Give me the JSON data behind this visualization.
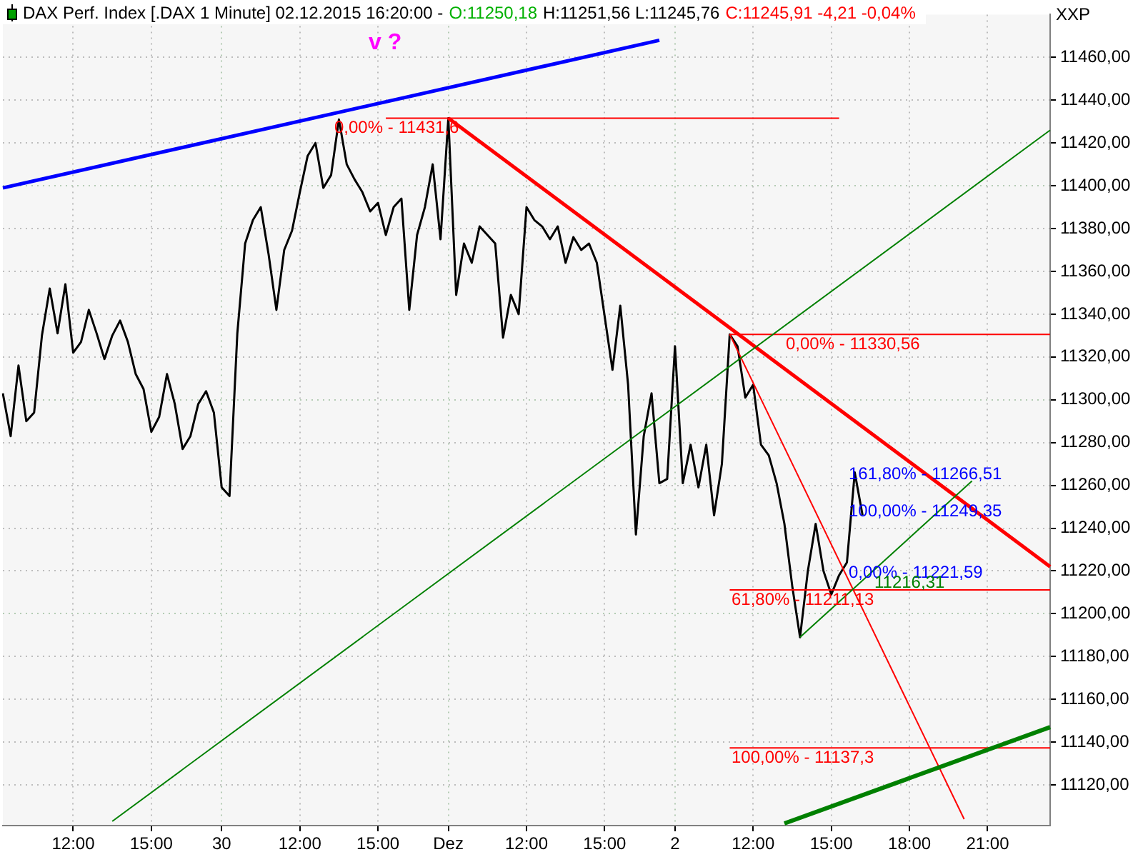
{
  "chart_data": {
    "type": "line",
    "title": "DAX Perf. Index [.DAX  1 Minute] 02.12.2015 16:20:00 -",
    "ylabel": "XXP",
    "annotations": [
      "O:11250,18",
      "H:11251,56 L:11245,76",
      "C:11245,91 -4,21 -0,04%",
      "v ?",
      {
        "text": "0,00% - 11431,6",
        "y": 11431.6
      },
      {
        "text": "0,00% - 11330,56",
        "y": 11330.56
      },
      "161,80% - 11266,51",
      "100,00% - 11249,35",
      "0,00% - 11221,59",
      "11216,31",
      {
        "text": "61,80% - 11211,13",
        "y": 11211.13
      },
      {
        "text": "100,00% - 11137,3",
        "y": 11137.3
      }
    ],
    "categories": [
      null,
      null,
      null,
      null,
      null,
      null,
      null,
      null,
      null,
      "12:00",
      null,
      null,
      null,
      null,
      null,
      null,
      null,
      null,
      null,
      "15:00",
      null,
      null,
      null,
      null,
      null,
      null,
      null,
      null,
      "30",
      null,
      null,
      null,
      null,
      null,
      null,
      null,
      null,
      null,
      "12:00",
      null,
      null,
      null,
      null,
      null,
      null,
      null,
      null,
      null,
      "15:00",
      null,
      null,
      null,
      null,
      null,
      null,
      null,
      null,
      "Dez",
      null,
      null,
      null,
      null,
      null,
      null,
      null,
      null,
      null,
      "12:00",
      null,
      null,
      null,
      null,
      null,
      null,
      null,
      null,
      null,
      "15:00",
      null,
      null,
      null,
      null,
      null,
      null,
      null,
      null,
      "2",
      null,
      null,
      null,
      null,
      null,
      null,
      null,
      null,
      null,
      "12:00",
      null,
      null,
      null,
      null,
      null,
      null,
      null,
      null,
      null,
      "15:00",
      null,
      null,
      null,
      null,
      null,
      null,
      null,
      null,
      null,
      "18:00",
      null,
      null,
      null,
      null,
      null,
      null,
      null,
      null,
      null,
      "21:00",
      null,
      null,
      null,
      null,
      null,
      null,
      null,
      null
    ],
    "ylim": [
      11101,
      11480
    ],
    "yticks": [
      {
        "value": 11120,
        "label": "11120,00"
      },
      {
        "value": 11140,
        "label": "11140,00"
      },
      {
        "value": 11160,
        "label": "11160,00"
      },
      {
        "value": 11180,
        "label": "11180,00"
      },
      {
        "value": 11200,
        "label": "11200,00"
      },
      {
        "value": 11220,
        "label": "11220,00"
      },
      {
        "value": 11240,
        "label": "11240,00"
      },
      {
        "value": 11260,
        "label": "11260,00"
      },
      {
        "value": 11280,
        "label": "11280,00"
      },
      {
        "value": 11300,
        "label": "11300,00"
      },
      {
        "value": 11320,
        "label": "11320,00"
      },
      {
        "value": 11340,
        "label": "11340,00"
      },
      {
        "value": 11360,
        "label": "11360,00"
      },
      {
        "value": 11380,
        "label": "11380,00"
      },
      {
        "value": 11400,
        "label": "11400,00"
      },
      {
        "value": 11420,
        "label": "11420,00"
      },
      {
        "value": 11440,
        "label": "11440,00"
      },
      {
        "value": 11460,
        "label": "11460,00"
      }
    ],
    "grid": true,
    "legend": false,
    "marker": "none",
    "line_style": "solid",
    "series": [
      {
        "type": "line",
        "color": "#0000ff",
        "values": [
          11399,
          null,
          null,
          null,
          null,
          null,
          null,
          null,
          null,
          null,
          null,
          null,
          null,
          null,
          null,
          null,
          null,
          null,
          null,
          null,
          null,
          null,
          null,
          null,
          null,
          null,
          null,
          null,
          null,
          null,
          null,
          null,
          null,
          null,
          null,
          null,
          null,
          null,
          null,
          null,
          null,
          null,
          null,
          null,
          null,
          null,
          null,
          null,
          null,
          null,
          null,
          null,
          null,
          null,
          null,
          null,
          null,
          null,
          null,
          null,
          null,
          null,
          null,
          null,
          null,
          null,
          null,
          null,
          null,
          null,
          null,
          null,
          null,
          null,
          null,
          null,
          null,
          null,
          null,
          null,
          null,
          null,
          null,
          null,
          11468,
          null,
          null,
          null,
          null,
          null,
          null,
          null,
          null,
          null,
          null,
          null,
          null,
          null,
          null,
          null,
          null,
          null,
          null,
          null,
          null,
          null,
          null,
          null,
          null,
          null,
          null,
          null,
          null,
          null,
          null,
          null,
          null,
          null,
          null,
          null,
          null,
          null,
          null,
          null,
          null,
          null,
          null,
          null,
          null,
          null,
          null,
          null,
          null,
          null,
          null
        ]
      },
      {
        "type": "line",
        "color": "#008000",
        "values": [
          null,
          null,
          null,
          null,
          null,
          null,
          null,
          null,
          null,
          null,
          null,
          null,
          null,
          null,
          11103,
          null,
          null,
          null,
          null,
          null,
          null,
          null,
          null,
          null,
          null,
          null,
          null,
          null,
          null,
          null,
          null,
          null,
          null,
          null,
          null,
          null,
          null,
          null,
          null,
          null,
          null,
          null,
          null,
          null,
          null,
          null,
          null,
          null,
          null,
          null,
          null,
          null,
          null,
          null,
          null,
          null,
          null,
          null,
          null,
          null,
          null,
          null,
          null,
          null,
          null,
          null,
          null,
          null,
          null,
          null,
          null,
          null,
          null,
          null,
          null,
          null,
          null,
          null,
          null,
          null,
          null,
          null,
          null,
          null,
          null,
          null,
          null,
          null,
          null,
          null,
          null,
          null,
          null,
          null,
          null,
          null,
          null,
          null,
          null,
          null,
          null,
          null,
          null,
          null,
          null,
          null,
          null,
          null,
          null,
          null,
          null,
          null,
          null,
          null,
          null,
          null,
          null,
          null,
          null,
          null,
          null,
          null,
          null,
          null,
          null,
          null,
          null,
          null,
          null,
          null,
          null,
          null,
          null,
          null,
          11426
        ]
      },
      {
        "type": "line",
        "color": "#008000",
        "values": [
          null,
          null,
          null,
          null,
          null,
          null,
          null,
          null,
          null,
          null,
          null,
          null,
          null,
          null,
          null,
          null,
          null,
          null,
          null,
          null,
          null,
          null,
          null,
          null,
          null,
          null,
          null,
          null,
          null,
          null,
          null,
          null,
          null,
          null,
          null,
          null,
          null,
          null,
          null,
          null,
          null,
          null,
          null,
          null,
          null,
          null,
          null,
          null,
          null,
          null,
          null,
          null,
          null,
          null,
          null,
          null,
          null,
          null,
          null,
          null,
          null,
          null,
          null,
          null,
          null,
          null,
          null,
          null,
          null,
          null,
          null,
          null,
          null,
          null,
          null,
          null,
          null,
          null,
          null,
          null,
          null,
          null,
          null,
          null,
          null,
          null,
          null,
          null,
          null,
          null,
          null,
          null,
          null,
          null,
          null,
          null,
          null,
          null,
          null,
          null,
          null,
          null,
          11189,
          null,
          null,
          null,
          null,
          null,
          null,
          null,
          null,
          null,
          null,
          null,
          null,
          null,
          null,
          null,
          null,
          null,
          null,
          null,
          null,
          null,
          11262,
          null,
          null,
          null,
          null,
          null,
          null,
          null,
          null,
          null,
          null
        ]
      },
      {
        "type": "line",
        "color": "#008000",
        "values": [
          null,
          null,
          null,
          null,
          null,
          null,
          null,
          null,
          null,
          null,
          null,
          null,
          null,
          null,
          null,
          null,
          null,
          null,
          null,
          null,
          null,
          null,
          null,
          null,
          null,
          null,
          null,
          null,
          null,
          null,
          null,
          null,
          null,
          null,
          null,
          null,
          null,
          null,
          null,
          null,
          null,
          null,
          null,
          null,
          null,
          null,
          null,
          null,
          null,
          null,
          null,
          null,
          null,
          null,
          null,
          null,
          null,
          null,
          null,
          null,
          null,
          null,
          null,
          null,
          null,
          null,
          null,
          null,
          null,
          null,
          null,
          null,
          null,
          null,
          null,
          null,
          null,
          null,
          null,
          null,
          null,
          null,
          null,
          null,
          null,
          null,
          null,
          null,
          null,
          null,
          null,
          null,
          null,
          null,
          null,
          null,
          null,
          null,
          null,
          null,
          11102,
          null,
          null,
          null,
          null,
          null,
          null,
          null,
          null,
          null,
          null,
          null,
          null,
          null,
          null,
          null,
          null,
          null,
          null,
          null,
          null,
          null,
          null,
          null,
          null,
          null,
          null,
          null,
          null,
          null,
          null,
          null,
          null,
          null,
          11147
        ]
      },
      {
        "type": "line",
        "color": "#ff0000",
        "values": [
          null,
          null,
          null,
          null,
          null,
          null,
          null,
          null,
          null,
          null,
          null,
          null,
          null,
          null,
          null,
          null,
          null,
          null,
          null,
          null,
          null,
          null,
          null,
          null,
          null,
          null,
          null,
          null,
          null,
          null,
          null,
          null,
          null,
          null,
          null,
          null,
          null,
          null,
          null,
          null,
          null,
          null,
          null,
          null,
          null,
          null,
          null,
          null,
          null,
          null,
          null,
          null,
          null,
          null,
          null,
          null,
          null,
          11431.6,
          null,
          null,
          null,
          null,
          null,
          null,
          null,
          null,
          null,
          null,
          null,
          null,
          null,
          null,
          null,
          null,
          null,
          null,
          null,
          null,
          null,
          null,
          null,
          null,
          null,
          null,
          null,
          null,
          null,
          null,
          null,
          null,
          null,
          null,
          null,
          null,
          null,
          null,
          null,
          null,
          null,
          null,
          null,
          null,
          null,
          null,
          null,
          null,
          null,
          null,
          null,
          null,
          null,
          null,
          null,
          null,
          null,
          null,
          null,
          null,
          null,
          null,
          null,
          null,
          null,
          null,
          null,
          null,
          null,
          null,
          null,
          null,
          null,
          null,
          null,
          null,
          11222
        ]
      },
      {
        "type": "line",
        "color": "#ff0000",
        "values": [
          null,
          null,
          null,
          null,
          null,
          null,
          null,
          null,
          null,
          null,
          null,
          null,
          null,
          null,
          null,
          null,
          null,
          null,
          null,
          null,
          null,
          null,
          null,
          null,
          null,
          null,
          null,
          null,
          null,
          null,
          null,
          null,
          null,
          null,
          null,
          null,
          null,
          null,
          null,
          null,
          null,
          null,
          null,
          null,
          null,
          null,
          null,
          null,
          null,
          11431.6,
          null,
          null,
          null,
          null,
          null,
          null,
          null,
          null,
          null,
          null,
          null,
          null,
          null,
          null,
          null,
          null,
          null,
          null,
          null,
          null,
          null,
          null,
          null,
          null,
          null,
          null,
          null,
          null,
          null,
          null,
          null,
          null,
          null,
          null,
          null,
          null,
          null,
          null,
          null,
          null,
          null,
          null,
          null,
          null,
          null,
          null,
          null,
          null,
          null,
          null,
          null,
          null,
          null,
          null,
          null,
          null,
          null,
          11431.6,
          null,
          null,
          null,
          null,
          null,
          null,
          null,
          null,
          null,
          null,
          null,
          null,
          null,
          null,
          null,
          null,
          null,
          null,
          null,
          null,
          null,
          null,
          null,
          null,
          null,
          null,
          null
        ]
      },
      {
        "type": "line",
        "color": "#ff0000",
        "values": [
          null,
          null,
          null,
          null,
          null,
          null,
          null,
          null,
          null,
          null,
          null,
          null,
          null,
          null,
          null,
          null,
          null,
          null,
          null,
          null,
          null,
          null,
          null,
          null,
          null,
          null,
          null,
          null,
          null,
          null,
          null,
          null,
          null,
          null,
          null,
          null,
          null,
          null,
          null,
          null,
          null,
          null,
          null,
          null,
          null,
          null,
          null,
          null,
          null,
          null,
          null,
          null,
          null,
          null,
          null,
          null,
          null,
          null,
          null,
          null,
          null,
          null,
          null,
          null,
          null,
          null,
          null,
          null,
          null,
          null,
          null,
          null,
          null,
          null,
          null,
          null,
          null,
          null,
          null,
          null,
          null,
          null,
          null,
          null,
          null,
          null,
          null,
          null,
          null,
          null,
          null,
          null,
          null,
          11330.56,
          null,
          null,
          null,
          null,
          null,
          null,
          null,
          null,
          null,
          null,
          null,
          null,
          null,
          null,
          null,
          null,
          null,
          null,
          null,
          null,
          null,
          null,
          null,
          null,
          null,
          null,
          null,
          null,
          null,
          null,
          null,
          null,
          null,
          null,
          null,
          null,
          null,
          null,
          null,
          null,
          11330.56
        ]
      },
      {
        "type": "line",
        "color": "#ff0000",
        "values": [
          null,
          null,
          null,
          null,
          null,
          null,
          null,
          null,
          null,
          null,
          null,
          null,
          null,
          null,
          null,
          null,
          null,
          null,
          null,
          null,
          null,
          null,
          null,
          null,
          null,
          null,
          null,
          null,
          null,
          null,
          null,
          null,
          null,
          null,
          null,
          null,
          null,
          null,
          null,
          null,
          null,
          null,
          null,
          null,
          null,
          null,
          null,
          null,
          null,
          null,
          null,
          null,
          null,
          null,
          null,
          null,
          null,
          null,
          null,
          null,
          null,
          null,
          null,
          null,
          null,
          null,
          null,
          null,
          null,
          null,
          null,
          null,
          null,
          null,
          null,
          null,
          null,
          null,
          null,
          null,
          null,
          null,
          null,
          null,
          null,
          null,
          null,
          null,
          null,
          null,
          null,
          null,
          null,
          11211.13,
          null,
          null,
          null,
          null,
          null,
          null,
          null,
          null,
          null,
          null,
          null,
          null,
          null,
          null,
          null,
          null,
          null,
          null,
          null,
          null,
          null,
          null,
          null,
          null,
          null,
          null,
          null,
          null,
          null,
          null,
          null,
          null,
          null,
          null,
          null,
          null,
          null,
          null,
          null,
          null,
          11211.13
        ]
      },
      {
        "type": "line",
        "color": "#ff0000",
        "values": [
          null,
          null,
          null,
          null,
          null,
          null,
          null,
          null,
          null,
          null,
          null,
          null,
          null,
          null,
          null,
          null,
          null,
          null,
          null,
          null,
          null,
          null,
          null,
          null,
          null,
          null,
          null,
          null,
          null,
          null,
          null,
          null,
          null,
          null,
          null,
          null,
          null,
          null,
          null,
          null,
          null,
          null,
          null,
          null,
          null,
          null,
          null,
          null,
          null,
          null,
          null,
          null,
          null,
          null,
          null,
          null,
          null,
          null,
          null,
          null,
          null,
          null,
          null,
          null,
          null,
          null,
          null,
          null,
          null,
          null,
          null,
          null,
          null,
          null,
          null,
          null,
          null,
          null,
          null,
          null,
          null,
          null,
          null,
          null,
          null,
          null,
          null,
          null,
          null,
          null,
          null,
          null,
          null,
          11137.3,
          null,
          null,
          null,
          null,
          null,
          null,
          null,
          null,
          null,
          null,
          null,
          null,
          null,
          null,
          null,
          null,
          null,
          null,
          null,
          null,
          null,
          null,
          null,
          null,
          null,
          null,
          null,
          null,
          null,
          null,
          null,
          null,
          null,
          null,
          null,
          null,
          null,
          null,
          null,
          null,
          11137.3
        ]
      },
      {
        "type": "line",
        "color": "#ff0000",
        "values": [
          null,
          null,
          null,
          null,
          null,
          null,
          null,
          null,
          null,
          null,
          null,
          null,
          null,
          null,
          null,
          null,
          null,
          null,
          null,
          null,
          null,
          null,
          null,
          null,
          null,
          null,
          null,
          null,
          null,
          null,
          null,
          null,
          null,
          null,
          null,
          null,
          null,
          null,
          null,
          null,
          null,
          null,
          null,
          null,
          null,
          null,
          null,
          null,
          null,
          null,
          null,
          null,
          null,
          null,
          null,
          null,
          null,
          null,
          null,
          null,
          null,
          null,
          null,
          null,
          null,
          null,
          null,
          null,
          null,
          null,
          null,
          null,
          null,
          null,
          null,
          null,
          null,
          null,
          null,
          null,
          null,
          null,
          null,
          null,
          null,
          null,
          null,
          null,
          null,
          null,
          null,
          null,
          null,
          11330.56,
          null,
          null,
          null,
          null,
          null,
          null,
          null,
          null,
          null,
          null,
          null,
          null,
          null,
          null,
          null,
          null,
          null,
          null,
          null,
          null,
          null,
          null,
          null,
          null,
          null,
          null,
          null,
          null,
          null,
          11104,
          null,
          null,
          null,
          null,
          null,
          null,
          null,
          null,
          null,
          null,
          null
        ]
      },
      {
        "type": "line",
        "color": "#000000",
        "values": [
          11303,
          11283,
          11316,
          11290,
          11294,
          11330,
          11352,
          11331,
          11354,
          11322,
          11327,
          11342,
          11331,
          11319,
          11330,
          11337,
          11327,
          11312,
          11305,
          11285,
          11292,
          11312,
          11298,
          11277,
          11283,
          11298,
          11304,
          11294,
          11259,
          11255,
          11331,
          11373,
          11384,
          11390,
          11368,
          11342,
          11370,
          11379,
          11397,
          11414,
          11420,
          11399,
          11405,
          11431,
          11410,
          11403,
          11397,
          11388,
          11392,
          11377,
          11390,
          11394,
          11342,
          11377,
          11390,
          11410,
          11375,
          11431.6,
          11349,
          11373,
          11364,
          11381,
          11377,
          11373,
          11329,
          11349,
          11340,
          11390,
          11384,
          11381,
          11375,
          11381,
          11364,
          11376,
          11370,
          11373,
          11364,
          null,
          11314,
          11344,
          11307,
          11237,
          11283,
          11303,
          11261,
          11263,
          11325,
          11261,
          11279,
          11259,
          11279,
          11246,
          11270,
          11330.56,
          11325,
          11301,
          11307,
          11279,
          11274,
          11261,
          11242,
          11213,
          11189,
          11220,
          11242,
          11220,
          11209,
          11218,
          11224,
          11266,
          11246,
          null,
          null,
          null,
          null,
          null,
          null,
          null,
          null,
          null,
          null,
          null,
          null,
          null,
          null,
          null,
          null,
          null,
          null,
          null,
          null,
          null,
          null,
          null,
          null
        ]
      }
    ]
  }
}
